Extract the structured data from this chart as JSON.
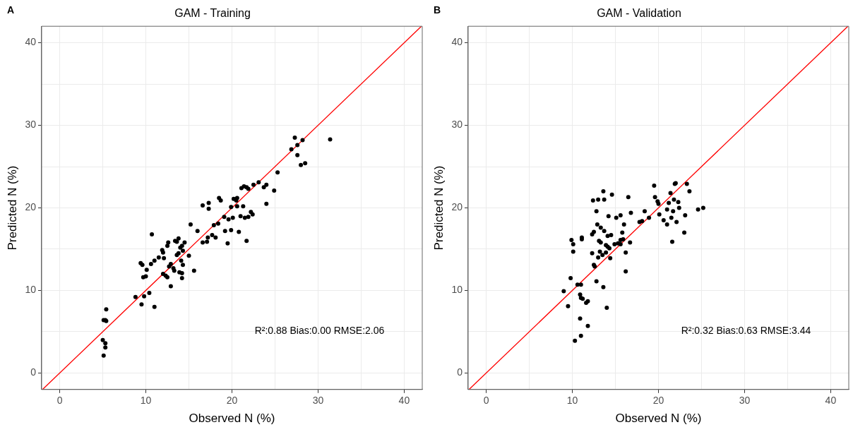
{
  "chart_data": [
    {
      "type": "scatter",
      "title": "GAM - Training",
      "xlabel": "Observed N (%)",
      "ylabel": "Predicted N (%)",
      "annotations": [
        "A",
        "R²:0.88 Bias:0.00 RMSE:2.06"
      ],
      "grid": true,
      "xlim": [
        -2.1,
        42.1
      ],
      "ylim": [
        -2,
        42
      ],
      "xticks": [
        0,
        {
          "value": 5,
          "label": null
        },
        10,
        {
          "value": 15,
          "label": null
        },
        20,
        {
          "value": 25,
          "label": null
        },
        30,
        {
          "value": 35,
          "label": null
        },
        40
      ],
      "yticks": [
        0,
        {
          "value": 5,
          "label": null
        },
        10,
        {
          "value": 15,
          "label": null
        },
        20,
        {
          "value": 25,
          "label": null
        },
        30,
        {
          "value": 35,
          "label": null
        },
        40
      ],
      "series": [
        {
          "marker": "circle",
          "color": "#000000",
          "x": [
            5.1,
            5.3,
            5.4,
            5.0,
            5.3,
            5.3,
            5.1,
            5.4,
            8.8,
            9.5,
            9.8,
            10.4,
            11.0,
            9.4,
            9.7,
            10.0,
            9.6,
            10.1,
            10.6,
            10.7,
            11.0,
            11.5,
            11.9,
            12.0,
            12.5,
            12.6,
            12.1,
            12.0,
            12.3,
            12.5,
            12.7,
            12.9,
            12.9,
            13.2,
            13.3,
            13.4,
            13.8,
            14.0,
            14.2,
            14.3,
            14.1,
            14.2,
            14.2,
            13.6,
            13.9,
            13.6,
            13.8,
            14.3,
            14.5,
            15.0,
            15.2,
            15.6,
            16.0,
            16.6,
            17.1,
            17.2,
            17.7,
            17.9,
            16.6,
            17.3,
            17.3,
            18.1,
            18.4,
            18.5,
            18.7,
            19.2,
            19.5,
            19.1,
            19.6,
            19.9,
            19.9,
            20.1,
            20.2,
            20.5,
            20.6,
            20.6,
            21.0,
            20.8,
            21.3,
            21.5,
            21.7,
            21.9,
            21.1,
            21.4,
            21.7,
            21.9,
            22.2,
            22.4,
            22.5,
            23.1,
            23.7,
            24.0,
            24.0,
            24.9,
            25.3,
            26.9,
            27.3,
            27.6,
            28.2,
            27.6,
            28.0,
            28.5,
            31.4
          ],
          "values": [
            6.4,
            6.4,
            7.7,
            4.0,
            3.6,
            3.1,
            2.1,
            6.3,
            9.2,
            8.3,
            9.3,
            9.7,
            8.0,
            13.3,
            11.6,
            11.7,
            13.1,
            12.5,
            13.2,
            16.8,
            13.6,
            14.0,
            14.9,
            14.6,
            15.4,
            15.8,
            13.9,
            12.0,
            11.8,
            11.6,
            12.9,
            13.2,
            10.5,
            12.7,
            12.4,
            16.0,
            16.3,
            15.2,
            15.4,
            14.8,
            13.6,
            12.1,
            11.5,
            14.3,
            12.2,
            15.9,
            14.5,
            13.1,
            15.8,
            14.2,
            18.0,
            12.4,
            17.2,
            15.8,
            15.9,
            16.4,
            16.7,
            17.9,
            20.3,
            20.6,
            19.9,
            16.4,
            18.1,
            21.2,
            20.9,
            17.2,
            15.7,
            18.9,
            18.6,
            20.1,
            17.3,
            18.8,
            21.1,
            20.9,
            21.2,
            20.2,
            19.0,
            17.1,
            20.2,
            18.8,
            16.0,
            18.9,
            22.4,
            22.6,
            22.5,
            22.3,
            19.5,
            19.2,
            22.8,
            23.1,
            22.5,
            20.5,
            22.8,
            22.1,
            24.3,
            27.1,
            28.5,
            27.6,
            28.2,
            26.4,
            25.2,
            25.4,
            28.3
          ]
        },
        {
          "type": "line",
          "marker": "none",
          "color": "#ff0000",
          "x": [
            -2,
            42
          ],
          "values": [
            -2,
            42
          ]
        }
      ]
    },
    {
      "type": "scatter",
      "title": "GAM - Validation",
      "xlabel": "Observed N (%)",
      "ylabel": "Predicted N (%)",
      "annotations": [
        "B",
        "R²:0.32 Bias:0.63 RMSE:3.44"
      ],
      "grid": true,
      "xlim": [
        -2.1,
        42.1
      ],
      "ylim": [
        -2,
        42
      ],
      "xticks": [
        0,
        {
          "value": 5,
          "label": null
        },
        10,
        {
          "value": 15,
          "label": null
        },
        20,
        {
          "value": 25,
          "label": null
        },
        30,
        {
          "value": 35,
          "label": null
        },
        40
      ],
      "yticks": [
        0,
        {
          "value": 5,
          "label": null
        },
        10,
        {
          "value": 15,
          "label": null
        },
        20,
        {
          "value": 25,
          "label": null
        },
        30,
        {
          "value": 35,
          "label": null
        },
        40
      ],
      "series": [
        {
          "marker": "circle",
          "color": "#000000",
          "x": [
            9.0,
            9.5,
            9.8,
            9.9,
            10.1,
            10.1,
            10.6,
            11.0,
            10.9,
            11.0,
            11.2,
            11.6,
            11.8,
            10.9,
            11.8,
            11.0,
            10.3,
            11.1,
            11.1,
            12.3,
            12.3,
            12.5,
            12.4,
            12.5,
            12.6,
            12.8,
            12.8,
            12.9,
            13.0,
            13.0,
            13.1,
            13.2,
            13.3,
            13.3,
            13.5,
            13.6,
            13.6,
            13.7,
            13.7,
            13.9,
            13.9,
            14.0,
            14.1,
            14.1,
            14.2,
            14.3,
            14.4,
            14.5,
            14.6,
            14.9,
            15.1,
            15.3,
            15.6,
            15.6,
            15.6,
            15.8,
            15.9,
            16.0,
            16.2,
            16.2,
            16.5,
            16.8,
            16.7,
            17.8,
            18.1,
            18.4,
            18.9,
            19.5,
            19.6,
            19.9,
            20.0,
            20.1,
            20.6,
            21.0,
            21.0,
            21.2,
            21.4,
            21.5,
            21.6,
            21.8,
            21.9,
            22.0,
            22.1,
            22.3,
            22.4,
            23.0,
            23.1,
            23.3,
            23.6,
            24.6,
            25.2,
            21.7
          ],
          "values": [
            9.9,
            8.1,
            11.5,
            16.1,
            14.7,
            15.6,
            10.7,
            10.7,
            9.5,
            9.1,
            9.0,
            8.5,
            8.7,
            6.6,
            5.7,
            4.5,
            3.9,
            16.2,
            16.4,
            14.5,
            16.8,
            17.1,
            20.9,
            13.1,
            12.9,
            11.1,
            19.6,
            18.0,
            21.0,
            14.0,
            16.0,
            14.7,
            17.6,
            15.8,
            14.3,
            10.4,
            22.0,
            21.0,
            17.2,
            14.6,
            15.5,
            7.9,
            15.3,
            16.6,
            19.0,
            15.1,
            13.9,
            16.7,
            21.6,
            15.6,
            18.8,
            15.7,
            16.1,
            19.1,
            15.6,
            17.0,
            16.2,
            18.0,
            14.6,
            12.3,
            21.3,
            19.4,
            15.8,
            18.3,
            18.4,
            19.6,
            18.8,
            22.7,
            21.3,
            20.8,
            20.5,
            19.2,
            18.5,
            18.0,
            19.8,
            20.6,
            21.8,
            18.8,
            15.9,
            21.0,
            22.9,
            23.0,
            18.3,
            20.7,
            20.0,
            17.0,
            19.1,
            22.9,
            22.0,
            19.8,
            20.0,
            19.6
          ]
        },
        {
          "type": "line",
          "marker": "none",
          "color": "#ff0000",
          "x": [
            -2,
            42
          ],
          "values": [
            -2,
            42
          ]
        }
      ]
    }
  ]
}
